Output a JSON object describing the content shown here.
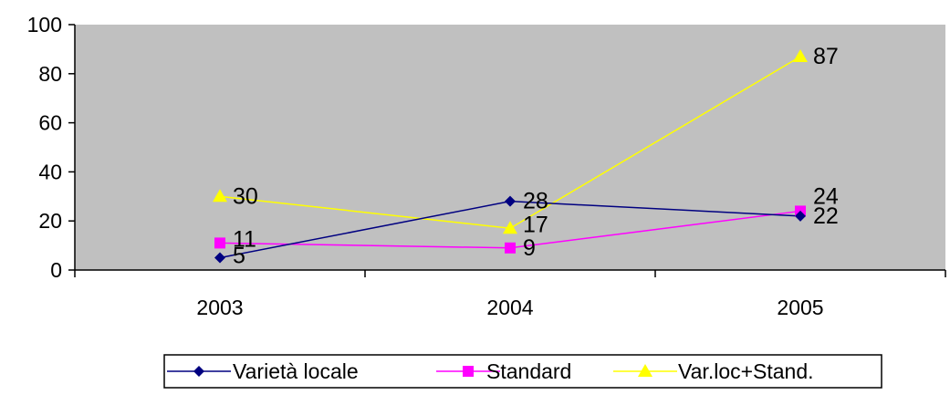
{
  "chart_data": {
    "type": "line",
    "title": "",
    "xlabel": "",
    "ylabel": "",
    "categories": [
      "2003",
      "2004",
      "2005"
    ],
    "ylim": [
      0,
      100
    ],
    "yticks": [
      "0",
      "20",
      "40",
      "60",
      "80",
      "100"
    ],
    "grid": false,
    "legend_position": "bottom",
    "plot_background": "#c0c0c0",
    "series": [
      {
        "name": "Varietà locale",
        "values": [
          5,
          28,
          22
        ],
        "color": "#000080",
        "marker": "diamond"
      },
      {
        "name": "Standard",
        "values": [
          11,
          9,
          24
        ],
        "color": "#ff00ff",
        "marker": "square"
      },
      {
        "name": "Var.loc+Stand.",
        "values": [
          30,
          17,
          87
        ],
        "color": "#ffff00",
        "marker": "triangle"
      }
    ]
  }
}
